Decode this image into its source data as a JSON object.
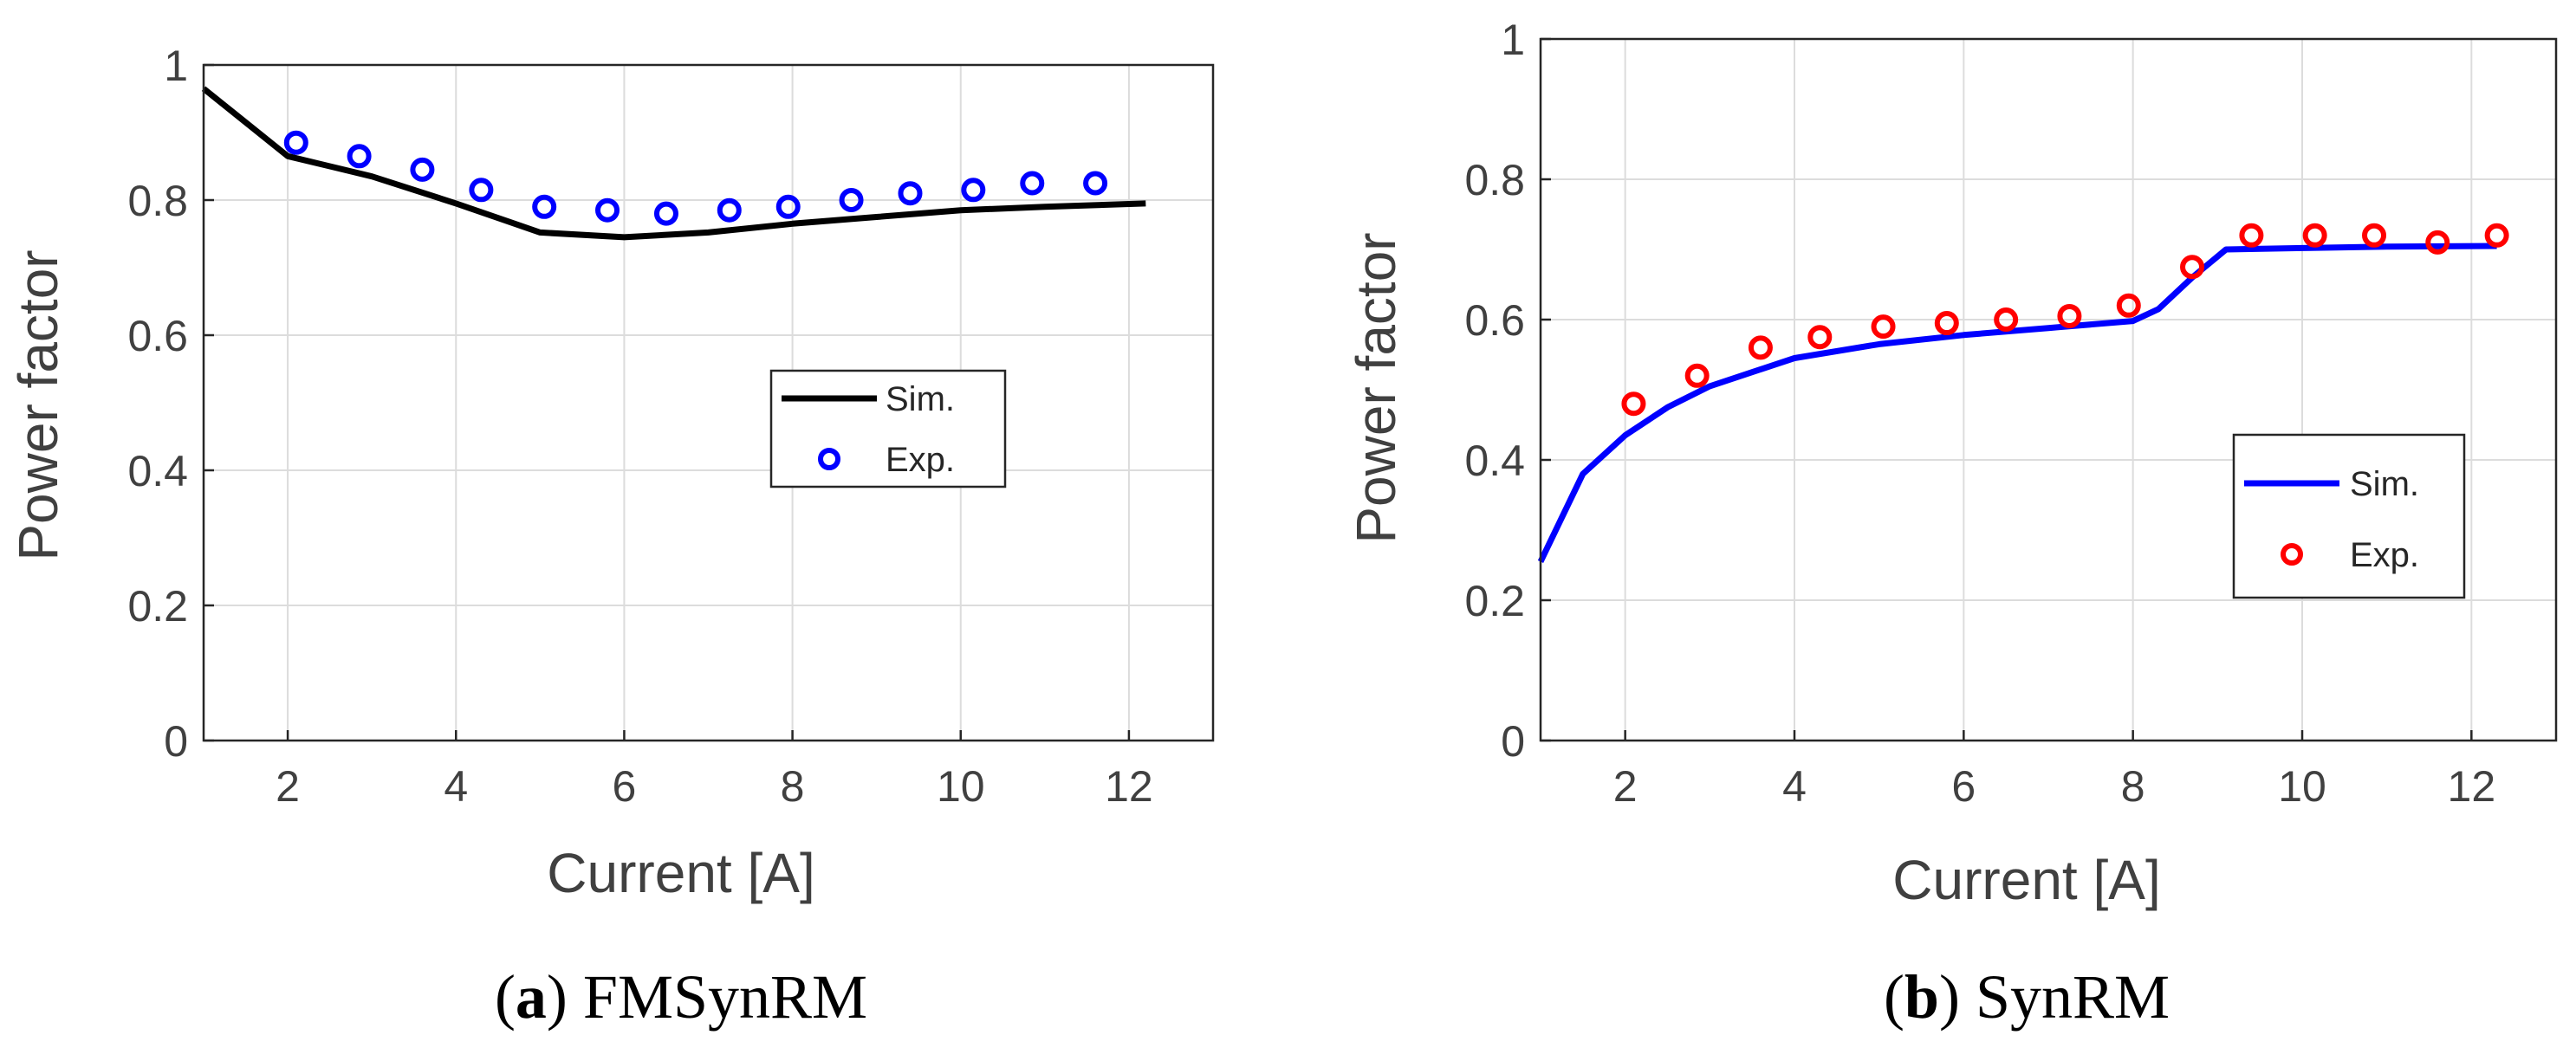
{
  "chart_data": [
    {
      "type": "line",
      "panel_letter": "a",
      "panel_title": "FMSynRM",
      "xlabel": "Current [A]",
      "ylabel": "Power factor",
      "xlim": [
        1,
        13
      ],
      "ylim": [
        0,
        1
      ],
      "xticks": [
        "2",
        "4",
        "6",
        "8",
        "10",
        "12"
      ],
      "yticks": [
        "0",
        "0.2",
        "0.4",
        "0.6",
        "0.8",
        "1"
      ],
      "grid": true,
      "legend_position": "center-right",
      "series": [
        {
          "name": "Sim.",
          "style": "line",
          "color": "#000000",
          "x": [
            1.0,
            2.0,
            3.0,
            4.0,
            5.0,
            6.0,
            7.0,
            8.0,
            9.0,
            10.0,
            11.0,
            12.2
          ],
          "y": [
            0.965,
            0.865,
            0.835,
            0.795,
            0.752,
            0.745,
            0.752,
            0.765,
            0.775,
            0.785,
            0.79,
            0.795
          ]
        },
        {
          "name": "Exp.",
          "style": "marker",
          "color": "#0000ff",
          "x": [
            2.1,
            2.85,
            3.6,
            4.3,
            5.05,
            5.8,
            6.5,
            7.25,
            7.95,
            8.7,
            9.4,
            10.15,
            10.85,
            11.6
          ],
          "y": [
            0.885,
            0.865,
            0.845,
            0.815,
            0.79,
            0.785,
            0.78,
            0.785,
            0.79,
            0.8,
            0.81,
            0.815,
            0.825,
            0.825
          ]
        }
      ]
    },
    {
      "type": "line",
      "panel_letter": "b",
      "panel_title": "SynRM",
      "xlabel": "Current [A]",
      "ylabel": "Power factor",
      "xlim": [
        1,
        13
      ],
      "ylim": [
        0,
        1
      ],
      "xticks": [
        "2",
        "4",
        "6",
        "8",
        "10",
        "12"
      ],
      "yticks": [
        "0",
        "0.2",
        "0.4",
        "0.6",
        "0.8",
        "1"
      ],
      "grid": true,
      "legend_position": "bottom-right",
      "series": [
        {
          "name": "Sim.",
          "style": "line",
          "color": "#0000ff",
          "x": [
            1.0,
            1.5,
            2.0,
            2.5,
            3.0,
            4.0,
            5.0,
            6.0,
            7.0,
            8.0,
            8.3,
            8.7,
            9.1,
            10.0,
            11.0,
            12.3
          ],
          "y": [
            0.255,
            0.38,
            0.435,
            0.475,
            0.505,
            0.545,
            0.565,
            0.578,
            0.588,
            0.598,
            0.615,
            0.66,
            0.7,
            0.702,
            0.704,
            0.705
          ]
        },
        {
          "name": "Exp.",
          "style": "marker",
          "color": "#ff0000",
          "x": [
            2.1,
            2.85,
            3.6,
            4.3,
            5.05,
            5.8,
            6.5,
            7.25,
            7.95,
            8.7,
            9.4,
            10.15,
            10.85,
            11.6,
            12.3
          ],
          "y": [
            0.48,
            0.52,
            0.56,
            0.575,
            0.59,
            0.595,
            0.6,
            0.605,
            0.62,
            0.675,
            0.72,
            0.72,
            0.72,
            0.71,
            0.72
          ]
        }
      ]
    }
  ]
}
